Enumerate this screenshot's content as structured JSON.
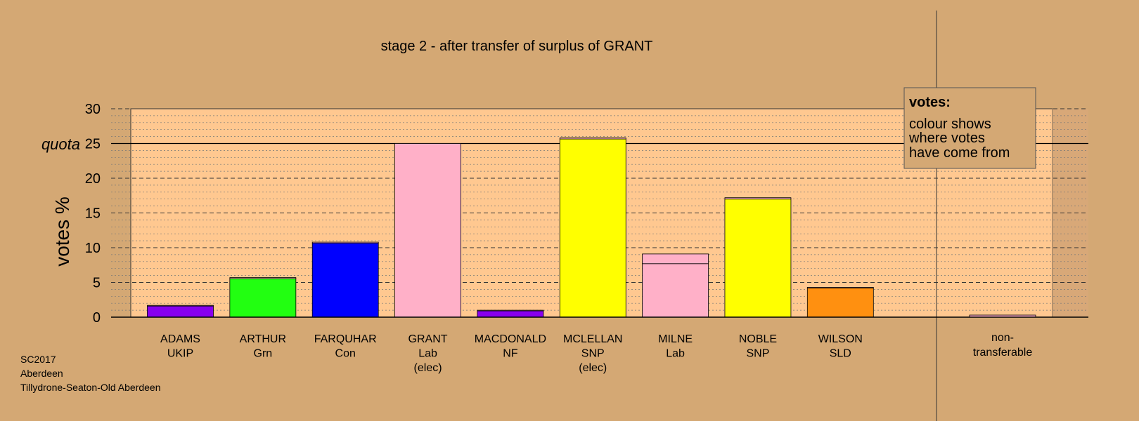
{
  "chart_data": {
    "type": "bar",
    "title": "stage 2 - after transfer of surplus of GRANT",
    "ylabel": "votes %",
    "ylim": [
      0,
      30
    ],
    "yticks": [
      0,
      5,
      10,
      15,
      20,
      25,
      30
    ],
    "quota": {
      "label": "quota",
      "value": 25
    },
    "grid": "dotted minor every 1, dashed major every 5",
    "categories": [
      [
        "ADAMS",
        "UKIP"
      ],
      [
        "ARTHUR",
        "Grn"
      ],
      [
        "FARQUHAR",
        "Con"
      ],
      [
        "GRANT",
        "Lab",
        "(elec)"
      ],
      [
        "MACDONALD",
        "NF"
      ],
      [
        "MCLELLAN",
        "SNP",
        "(elec)"
      ],
      [
        "MILNE",
        "Lab"
      ],
      [
        "NOBLE",
        "SNP"
      ],
      [
        "WILSON",
        "SLD"
      ]
    ],
    "bars": [
      {
        "total": 1.7,
        "segments": [
          {
            "value": 1.6,
            "color": "#8800ee"
          },
          {
            "value": 0.1,
            "color": "#ffb0c8"
          }
        ]
      },
      {
        "total": 5.7,
        "segments": [
          {
            "value": 5.55,
            "color": "#22ff11"
          },
          {
            "value": 0.15,
            "color": "#ffb0c8"
          }
        ]
      },
      {
        "total": 10.8,
        "segments": [
          {
            "value": 10.65,
            "color": "#0000ff"
          },
          {
            "value": 0.15,
            "color": "#ffb0c8"
          }
        ]
      },
      {
        "total": 25.0,
        "segments": [
          {
            "value": 25.0,
            "color": "#ffb0c8"
          }
        ]
      },
      {
        "total": 1.0,
        "segments": [
          {
            "value": 0.9,
            "color": "#8800ee"
          },
          {
            "value": 0.1,
            "color": "#ffb0c8"
          }
        ]
      },
      {
        "total": 25.8,
        "segments": [
          {
            "value": 25.65,
            "color": "#ffff00"
          },
          {
            "value": 0.15,
            "color": "#ffb0c8"
          }
        ]
      },
      {
        "total": 9.1,
        "segments": [
          {
            "value": 7.7,
            "color": "#ffb0c8"
          },
          {
            "value": 1.4,
            "color": "#ffb0c8"
          }
        ]
      },
      {
        "total": 17.2,
        "segments": [
          {
            "value": 17.0,
            "color": "#ffff00"
          },
          {
            "value": 0.2,
            "color": "#ffb0c8"
          }
        ]
      },
      {
        "total": 4.3,
        "segments": [
          {
            "value": 4.2,
            "color": "#ff9010"
          },
          {
            "value": 0.1,
            "color": "#ffb0c8"
          }
        ]
      }
    ],
    "nontransferable": {
      "label": [
        "non-",
        "transferable"
      ],
      "value": 0.3,
      "color": "#ffb0c8"
    },
    "legend": {
      "title": "votes:",
      "lines": [
        "colour shows",
        "where votes",
        "have come from"
      ],
      "placement": "top-right"
    }
  },
  "footer": [
    "SC2017",
    "Aberdeen",
    "Tillydrone-Seaton-Old Aberdeen"
  ],
  "colors": {
    "background": "#d4a874",
    "plot_bg": "#ffc890",
    "plot_bg_right": "#d8a878"
  }
}
